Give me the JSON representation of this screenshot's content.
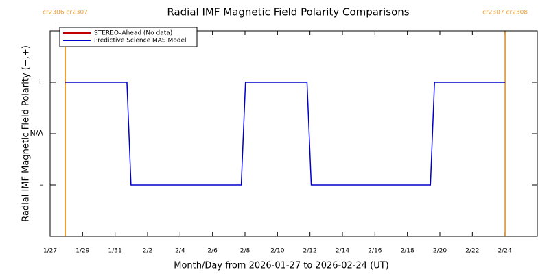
{
  "chart_data": {
    "type": "line",
    "title": "Radial IMF Magnetic Field Polarity Comparisons",
    "x_label": "Month/Day from 2026-01-27 to 2026-02-24 (UT)",
    "y_label": "Radial IMF Magnetic Field Polarity (−,+)",
    "xlim": [
      0,
      30
    ],
    "xticks": [
      {
        "value": 0,
        "label": "1/27"
      },
      {
        "value": 2,
        "label": "1/29"
      },
      {
        "value": 4,
        "label": "1/31"
      },
      {
        "value": 6,
        "label": "2/2"
      },
      {
        "value": 8,
        "label": "2/4"
      },
      {
        "value": 10,
        "label": "2/6"
      },
      {
        "value": 12,
        "label": "2/8"
      },
      {
        "value": 14,
        "label": "2/10"
      },
      {
        "value": 16,
        "label": "2/12"
      },
      {
        "value": 18,
        "label": "2/14"
      },
      {
        "value": 20,
        "label": "2/16"
      },
      {
        "value": 22,
        "label": "2/18"
      },
      {
        "value": 24,
        "label": "2/20"
      },
      {
        "value": 26,
        "label": "2/22"
      },
      {
        "value": 28,
        "label": "2/24"
      }
    ],
    "ylim": [
      -2,
      2
    ],
    "yticks": [
      {
        "value": -1,
        "label": "–"
      },
      {
        "value": 0,
        "label": "N/A"
      },
      {
        "value": 1,
        "label": "+"
      }
    ],
    "legend": "upper left",
    "series": [
      {
        "name": "STEREO–Ahead (No data)",
        "color": "#c00000",
        "x": [],
        "values": []
      },
      {
        "name": "Predictive Science MAS Model",
        "color": "#0000cc",
        "x": [
          0.93,
          4.73,
          4.98,
          11.77,
          12.03,
          15.82,
          16.08,
          23.42,
          23.67,
          28.02
        ],
        "values": [
          1,
          1,
          -1,
          -1,
          1,
          1,
          -1,
          -1,
          1,
          1
        ]
      }
    ],
    "markers": {
      "color": "#f0a030",
      "items": [
        {
          "x": 0.93,
          "label": "cr2306 cr2307"
        },
        {
          "x": 28.02,
          "label": "cr2307 cr2308"
        }
      ]
    }
  }
}
